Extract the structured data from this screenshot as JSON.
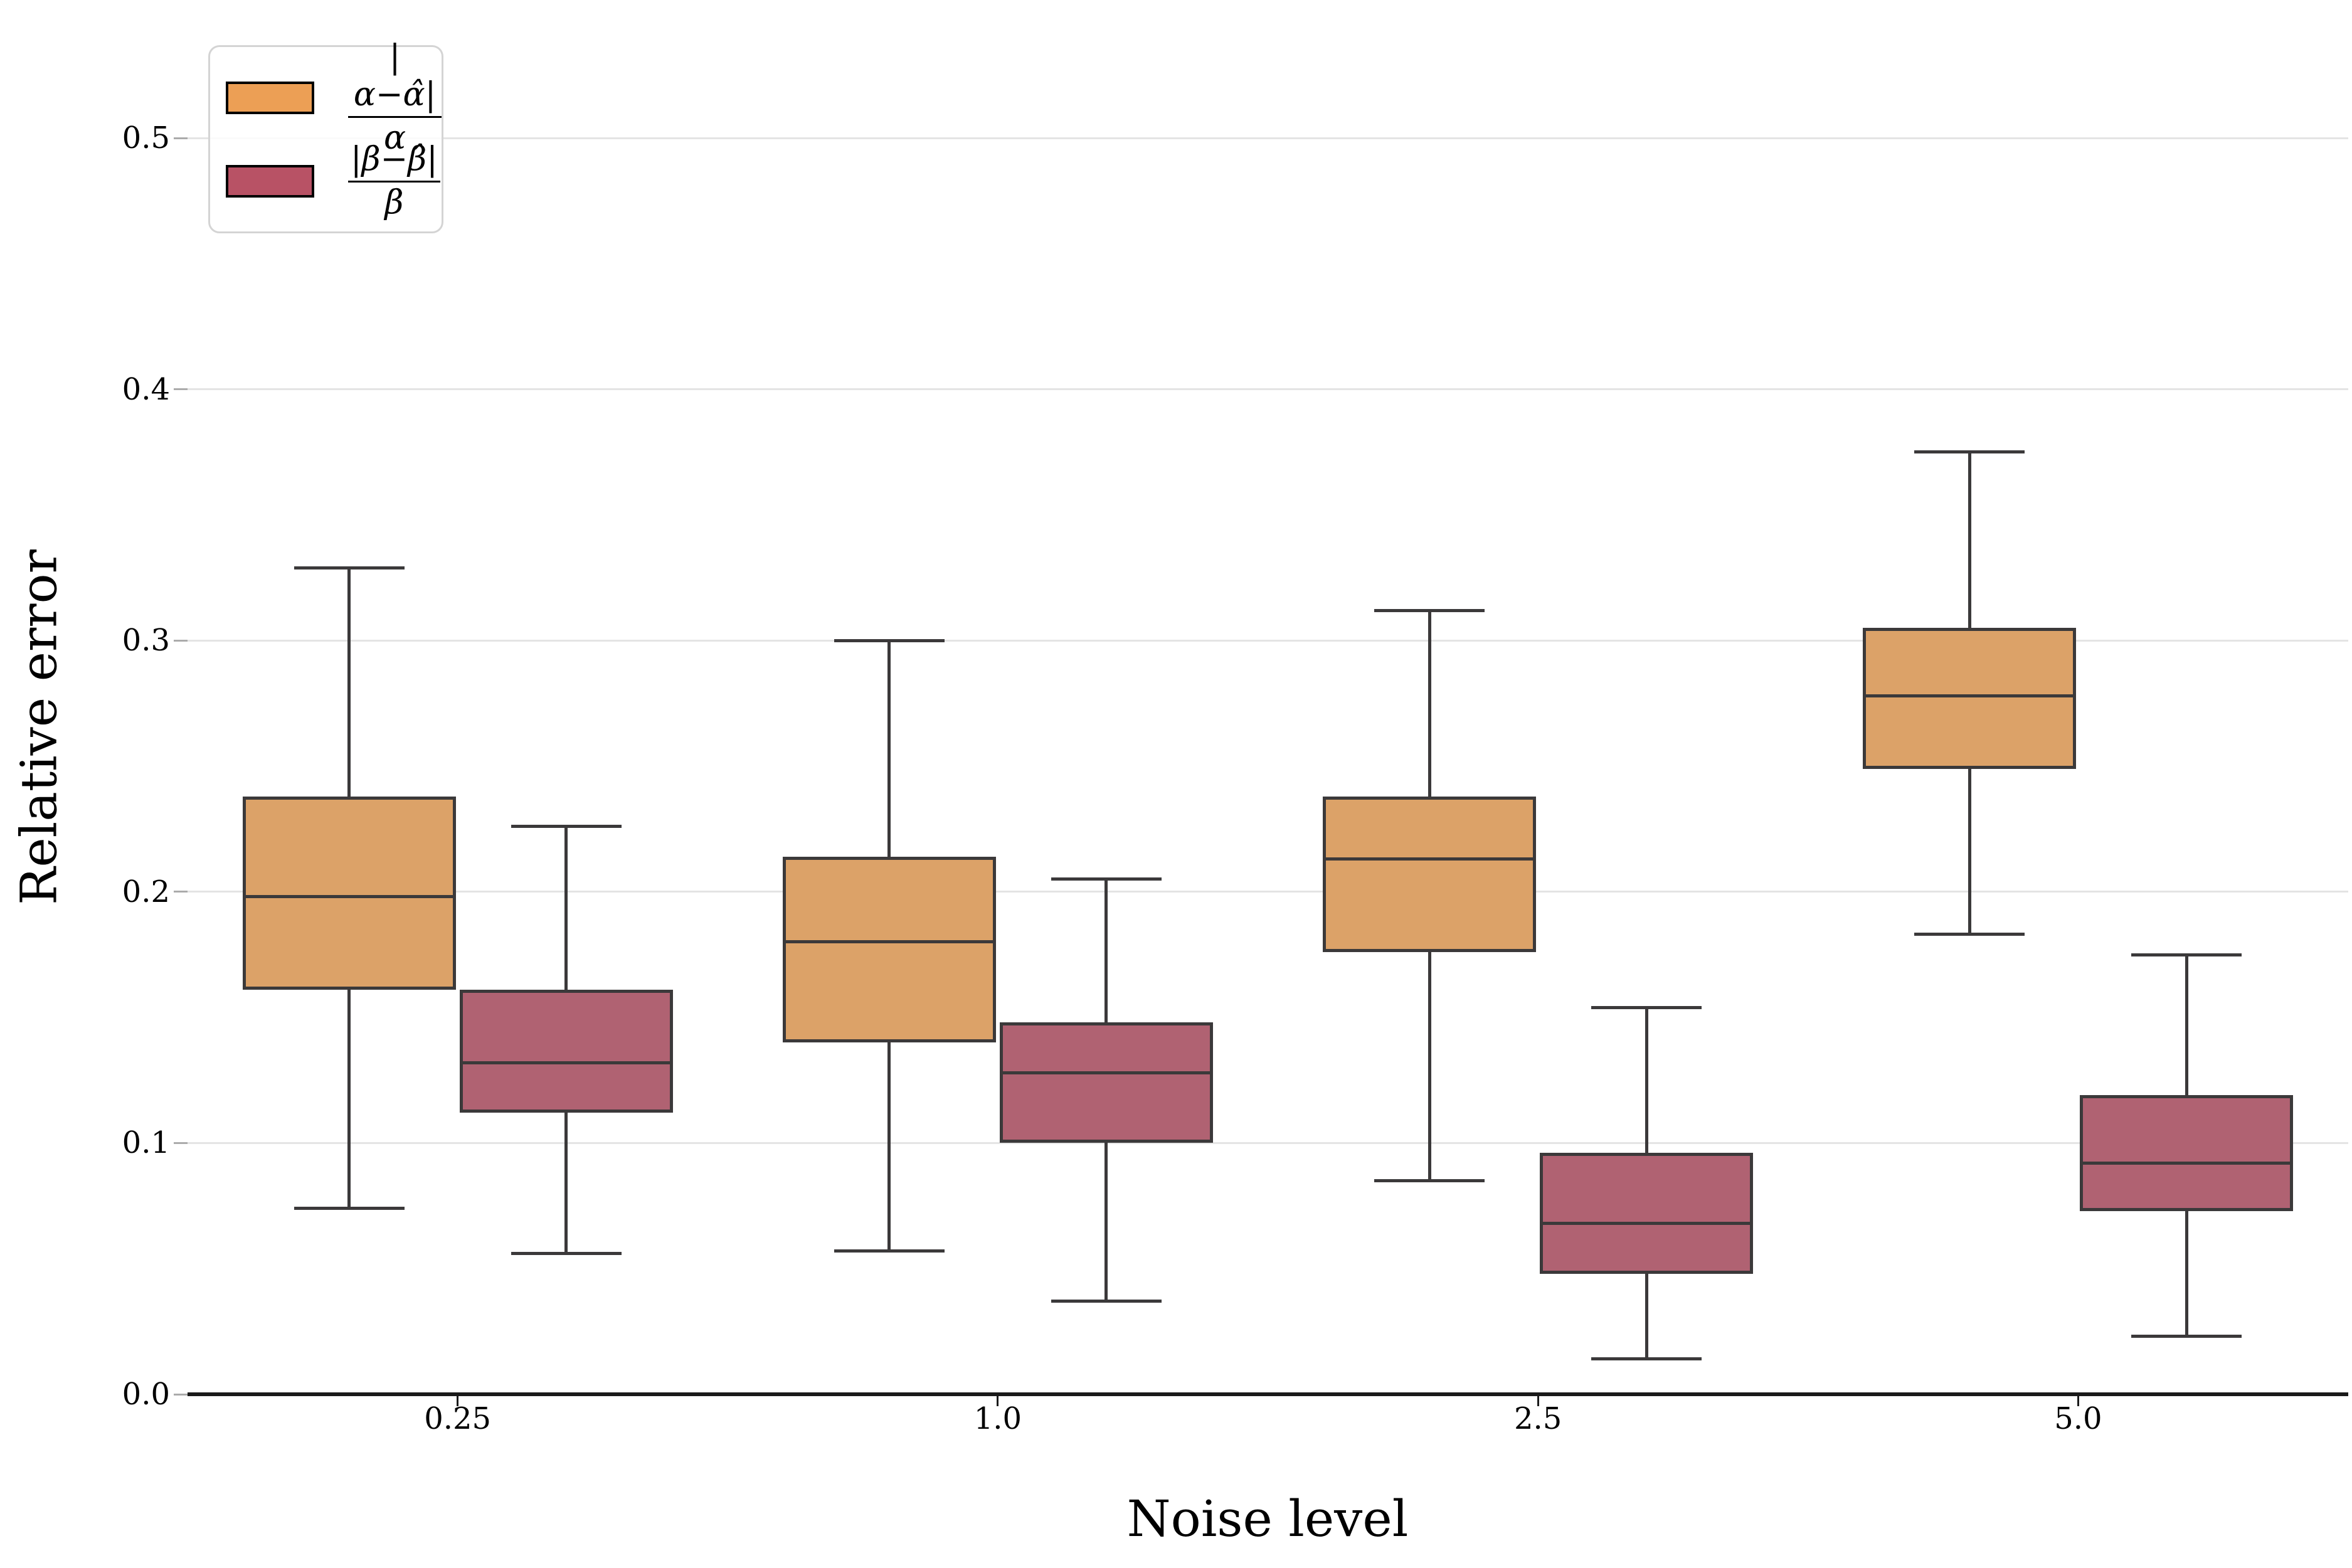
{
  "figure": {
    "xlabel": "Noise level",
    "ylabel": "Relative error"
  },
  "legend": {
    "items": [
      {
        "name": "alpha-relative-error",
        "numerator": "|α−α̂|",
        "denominator": "α",
        "color": "#EC9F55"
      },
      {
        "name": "beta-relative-error",
        "numerator": "|β−β̂|",
        "denominator": "β",
        "color": "#B85265"
      }
    ]
  },
  "chart_data": {
    "type": "boxplot",
    "title": "",
    "xlabel": "Noise level",
    "ylabel": "Relative error",
    "categories": [
      "0.25",
      "1.0",
      "2.5",
      "5.0"
    ],
    "y_tick_labels": [
      "0.0",
      "0.1",
      "0.2",
      "0.3",
      "0.4",
      "0.5"
    ],
    "yticks": [
      0.0,
      0.1,
      0.2,
      0.3,
      0.4,
      0.5
    ],
    "ylim": [
      0.0,
      0.53
    ],
    "grid": "horizontal",
    "legend_position": "upper left",
    "style": {
      "edge_color": "#3B393A",
      "grid_color": "#E4E4E4",
      "spine_color": "#1A1A1A",
      "tick_color": "#ABABAB"
    },
    "series": [
      {
        "name": "|α−α̂|/α",
        "fill": "#DCA268",
        "legend_fill": "#EC9F55",
        "boxes": [
          {
            "category": "0.25",
            "whislo": 0.074,
            "q1": 0.161,
            "med": 0.198,
            "q3": 0.238,
            "whishi": 0.329
          },
          {
            "category": "1.0",
            "whislo": 0.057,
            "q1": 0.14,
            "med": 0.18,
            "q3": 0.214,
            "whishi": 0.3
          },
          {
            "category": "2.5",
            "whislo": 0.085,
            "q1": 0.176,
            "med": 0.213,
            "q3": 0.238,
            "whishi": 0.312
          },
          {
            "category": "5.0",
            "whislo": 0.183,
            "q1": 0.249,
            "med": 0.278,
            "q3": 0.305,
            "whishi": 0.375
          }
        ]
      },
      {
        "name": "|β−β̂|/β",
        "fill": "#B06272",
        "legend_fill": "#B85265",
        "boxes": [
          {
            "category": "0.25",
            "whislo": 0.056,
            "q1": 0.112,
            "med": 0.132,
            "q3": 0.161,
            "whishi": 0.226
          },
          {
            "category": "1.0",
            "whislo": 0.037,
            "q1": 0.1,
            "med": 0.128,
            "q3": 0.148,
            "whishi": 0.205
          },
          {
            "category": "2.5",
            "whislo": 0.014,
            "q1": 0.048,
            "med": 0.068,
            "q3": 0.096,
            "whishi": 0.154
          },
          {
            "category": "5.0",
            "whislo": 0.023,
            "q1": 0.073,
            "med": 0.092,
            "q3": 0.119,
            "whishi": 0.175
          }
        ]
      }
    ]
  }
}
